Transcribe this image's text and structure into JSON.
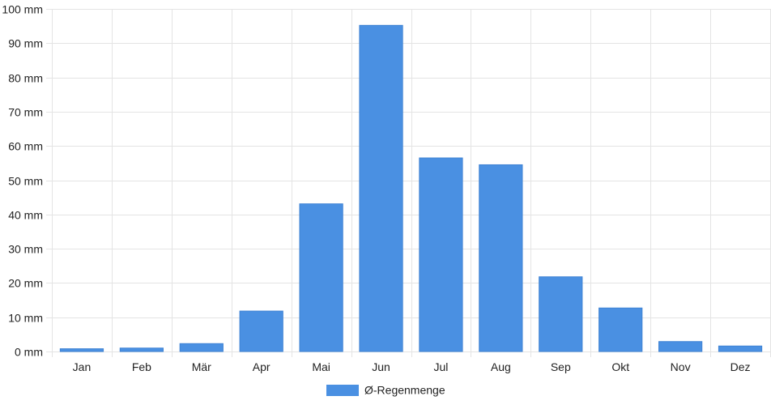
{
  "chart_data": {
    "type": "bar",
    "categories": [
      "Jan",
      "Feb",
      "Mär",
      "Apr",
      "Mai",
      "Jun",
      "Jul",
      "Aug",
      "Sep",
      "Okt",
      "Nov",
      "Dez"
    ],
    "series": [
      {
        "name": "Ø-Regenmenge",
        "values": [
          0.8,
          1.0,
          2.3,
          11.8,
          43.1,
          95.2,
          56.5,
          54.5,
          21.8,
          12.7,
          2.9,
          1.6
        ],
        "color": "#4a90e2"
      }
    ],
    "y_unit": "mm",
    "ylim": [
      0,
      100
    ],
    "y_ticks": [
      0,
      10,
      20,
      30,
      40,
      50,
      60,
      70,
      80,
      90,
      100
    ],
    "y_tick_labels": [
      "0 mm",
      "10 mm",
      "20 mm",
      "30 mm",
      "40 mm",
      "50 mm",
      "60 mm",
      "70 mm",
      "80 mm",
      "90 mm",
      "100 mm"
    ],
    "grid": true,
    "legend_position": "bottom"
  }
}
